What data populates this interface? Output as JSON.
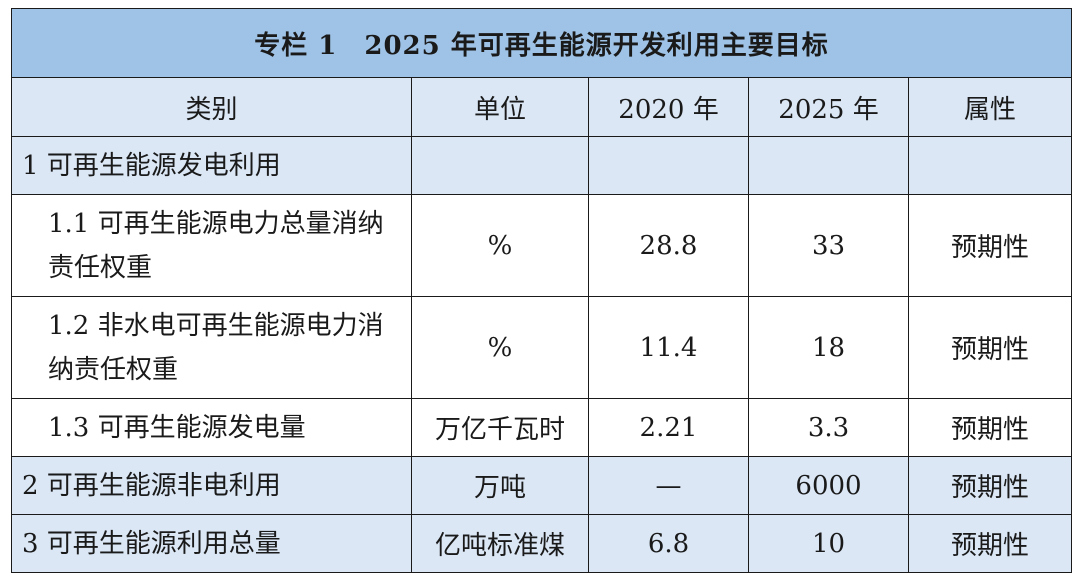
{
  "title": "专栏 1　2025 年可再生能源开发利用主要目标",
  "headers": [
    "类别",
    "单位",
    "2020 年",
    "2025 年",
    "属性"
  ],
  "rows": [
    {
      "category": "1  可再生能源发电利用",
      "unit": "",
      "v2020": "",
      "v2025": "",
      "attr": ""
    },
    {
      "category": "1.1  可再生能源电力总量消纳责任权重",
      "unit": "%",
      "v2020": "28.8",
      "v2025": "33",
      "attr": "预期性"
    },
    {
      "category": "1.2  非水电可再生能源电力消纳责任权重",
      "unit": "%",
      "v2020": "11.4",
      "v2025": "18",
      "attr": "预期性"
    },
    {
      "category": "1.3  可再生能源发电量",
      "unit": "万亿千瓦时",
      "v2020": "2.21",
      "v2025": "3.3",
      "attr": "预期性"
    },
    {
      "category": "2  可再生能源非电利用",
      "unit": "万吨",
      "v2020": "—",
      "v2025": "6000",
      "attr": "预期性"
    },
    {
      "category": "3  可再生能源利用总量",
      "unit": "亿吨标准煤",
      "v2020": "6.8",
      "v2025": "10",
      "attr": "预期性"
    }
  ],
  "colors": {
    "title_bg": "#9fc3e6",
    "header_bg": "#dbe7f5",
    "row_light_bg": "#dbe7f5",
    "border": "#1a1a1a"
  }
}
